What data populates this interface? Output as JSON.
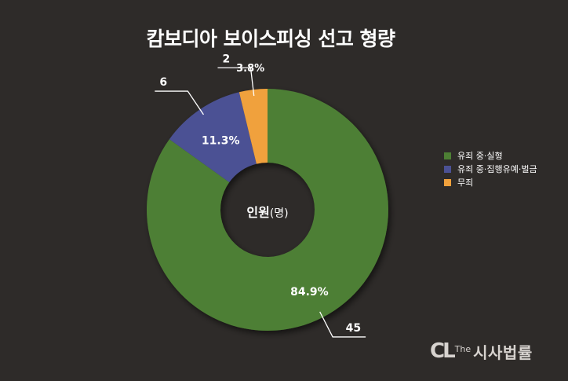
{
  "title": "캄보디아 보이스피싱 선고 형량",
  "center_label": {
    "main": "인원",
    "unit": "(명)"
  },
  "watermark": {
    "logo": "CL",
    "prefix": "The",
    "name": "시사법률"
  },
  "chart_data": {
    "type": "pie",
    "donut": true,
    "title": "캄보디아 보이스피싱 선고 형량",
    "unit": "명",
    "series": [
      {
        "name": "유죄 중·실형",
        "value": 45,
        "value_label": "45",
        "percent_label": "84.9%",
        "color": "#4d7f34"
      },
      {
        "name": "유죄 중·집행유예·벌금",
        "value": 6,
        "value_label": "6",
        "percent_label": "11.3%",
        "color": "#4b5194"
      },
      {
        "name": "무죄",
        "value": 2,
        "value_label": "2",
        "percent_label": "3.8%",
        "color": "#f0a13c"
      }
    ],
    "legend": "right"
  }
}
